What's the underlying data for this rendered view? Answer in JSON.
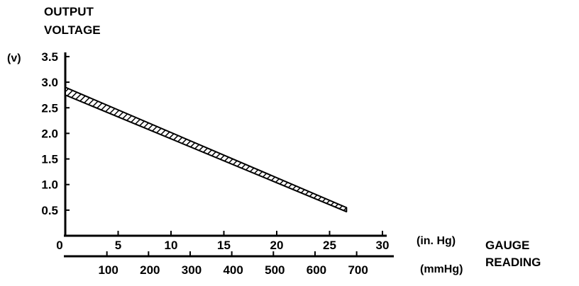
{
  "chart_data": {
    "type": "area",
    "title": "",
    "ylabel_line1": "OUTPUT",
    "ylabel_line2": "VOLTAGE",
    "y_unit": "(v)",
    "xlabel_line1": "GAUGE",
    "xlabel_line2": "READING",
    "x_unit_inhg": "(in. Hg)",
    "x_unit_mmhg": "(mmHg)",
    "ylim": [
      0,
      3.5
    ],
    "xlim": [
      0,
      30
    ],
    "y_ticks": [
      {
        "v": 0.5,
        "label": "0.5"
      },
      {
        "v": 1.0,
        "label": "1.0"
      },
      {
        "v": 1.5,
        "label": "1.5"
      },
      {
        "v": 2.0,
        "label": "2.0"
      },
      {
        "v": 2.5,
        "label": "2.5"
      },
      {
        "v": 3.0,
        "label": "3.0"
      },
      {
        "v": 3.5,
        "label": "3.5"
      }
    ],
    "x_ticks_inhg": [
      {
        "v": 0,
        "label": "0"
      },
      {
        "v": 5,
        "label": "5"
      },
      {
        "v": 10,
        "label": "10"
      },
      {
        "v": 15,
        "label": "15"
      },
      {
        "v": 20,
        "label": "20"
      },
      {
        "v": 25,
        "label": "25"
      },
      {
        "v": 30,
        "label": "30"
      }
    ],
    "x_ticks_mmhg": [
      {
        "v": 100,
        "label": "100"
      },
      {
        "v": 200,
        "label": "200"
      },
      {
        "v": 300,
        "label": "300"
      },
      {
        "v": 400,
        "label": "400"
      },
      {
        "v": 500,
        "label": "500"
      },
      {
        "v": 600,
        "label": "600"
      },
      {
        "v": 700,
        "label": "700"
      }
    ],
    "band": {
      "x": [
        0,
        26.6
      ],
      "upper": [
        2.9,
        0.55
      ],
      "lower": [
        2.75,
        0.47
      ]
    },
    "grid": false,
    "fill_pattern": "diagonal-hatch"
  }
}
